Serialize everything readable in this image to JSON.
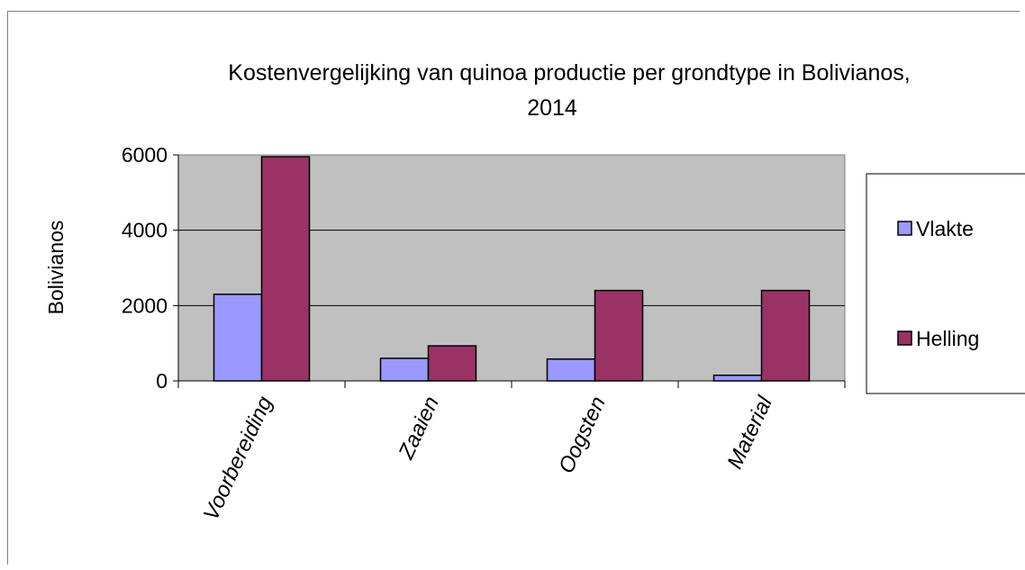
{
  "chart_data": {
    "type": "bar",
    "title": "Kostenvergelijking  van quinoa productie per  grondtype in Bolivianos, 2014",
    "title_lines": [
      "Kostenvergelijking  van quinoa productie per  grondtype in Bolivianos,",
      "2014"
    ],
    "xlabel": "",
    "ylabel": "Bolivianos",
    "ylim": [
      0,
      6000
    ],
    "yticks": [
      0,
      2000,
      4000,
      6000
    ],
    "ytick_labels": [
      "0",
      "2000",
      "4000",
      "6000"
    ],
    "grid": true,
    "legend_position": "right",
    "categories": [
      "Voorbereiding",
      "Zaaien",
      "Oogsten",
      "Material"
    ],
    "series": [
      {
        "name": "Vlakte",
        "color": "#9999ff",
        "values": [
          2300,
          600,
          580,
          150
        ]
      },
      {
        "name": "Helling",
        "color": "#993366",
        "values": [
          5950,
          930,
          2400,
          2400
        ]
      }
    ],
    "plot_background": "#c0c0c0"
  }
}
